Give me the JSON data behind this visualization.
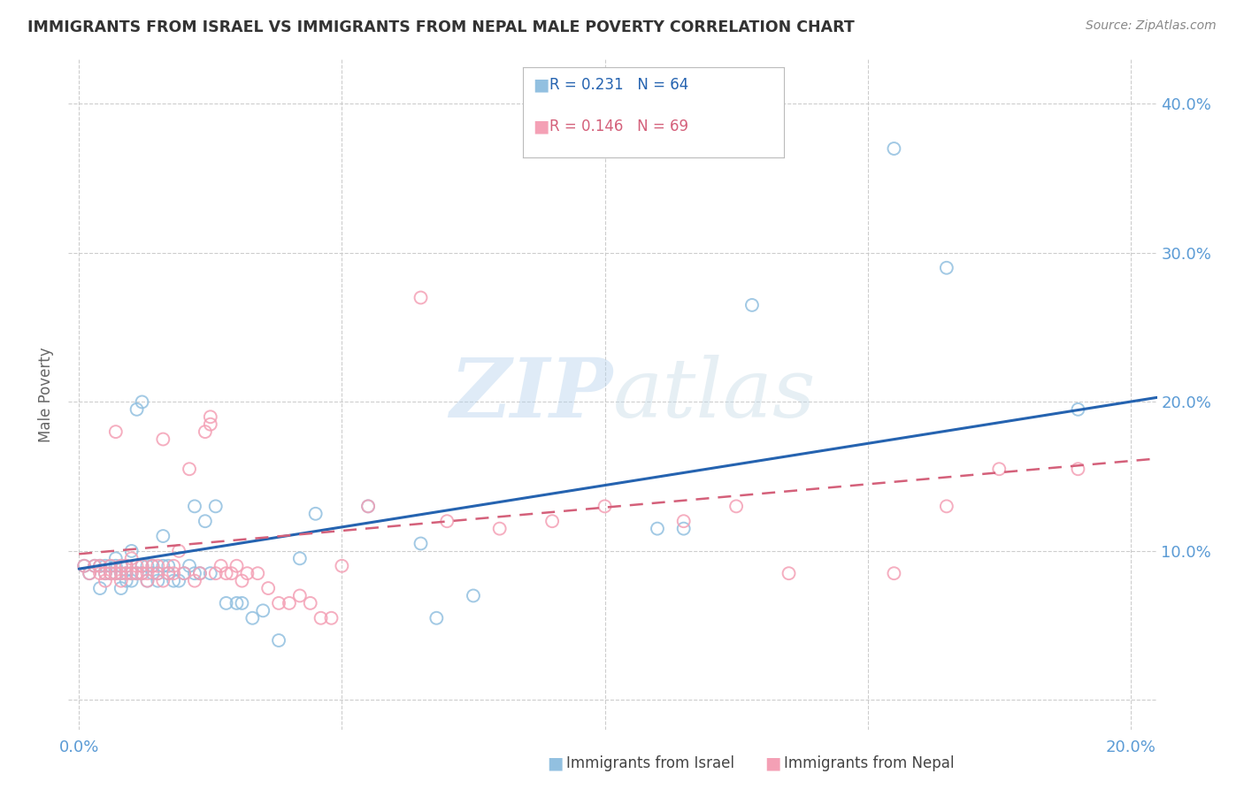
{
  "title": "IMMIGRANTS FROM ISRAEL VS IMMIGRANTS FROM NEPAL MALE POVERTY CORRELATION CHART",
  "source": "Source: ZipAtlas.com",
  "ylabel_label": "Male Poverty",
  "x_ticks": [
    0.0,
    0.05,
    0.1,
    0.15,
    0.2
  ],
  "y_ticks": [
    0.0,
    0.1,
    0.2,
    0.3,
    0.4
  ],
  "y_tick_labels": [
    "",
    "10.0%",
    "20.0%",
    "30.0%",
    "40.0%"
  ],
  "xlim": [
    -0.002,
    0.205
  ],
  "ylim": [
    -0.02,
    0.43
  ],
  "israel_color": "#92c0e0",
  "nepal_color": "#f4a0b5",
  "israel_line_color": "#2563b0",
  "nepal_line_color": "#d4607a",
  "israel_R": 0.231,
  "israel_N": 64,
  "nepal_R": 0.146,
  "nepal_N": 69,
  "israel_scatter_x": [
    0.001,
    0.002,
    0.003,
    0.004,
    0.004,
    0.005,
    0.005,
    0.006,
    0.006,
    0.007,
    0.007,
    0.007,
    0.008,
    0.008,
    0.008,
    0.009,
    0.009,
    0.009,
    0.01,
    0.01,
    0.01,
    0.011,
    0.011,
    0.012,
    0.012,
    0.012,
    0.013,
    0.013,
    0.014,
    0.014,
    0.015,
    0.015,
    0.016,
    0.016,
    0.017,
    0.017,
    0.018,
    0.019,
    0.02,
    0.021,
    0.022,
    0.022,
    0.023,
    0.024,
    0.025,
    0.026,
    0.028,
    0.03,
    0.031,
    0.033,
    0.035,
    0.038,
    0.042,
    0.045,
    0.055,
    0.065,
    0.068,
    0.075,
    0.11,
    0.115,
    0.128,
    0.155,
    0.165,
    0.19
  ],
  "israel_scatter_y": [
    0.09,
    0.085,
    0.09,
    0.075,
    0.09,
    0.09,
    0.085,
    0.085,
    0.09,
    0.085,
    0.09,
    0.095,
    0.075,
    0.085,
    0.09,
    0.08,
    0.085,
    0.09,
    0.08,
    0.085,
    0.1,
    0.085,
    0.195,
    0.09,
    0.085,
    0.2,
    0.08,
    0.09,
    0.085,
    0.09,
    0.08,
    0.085,
    0.09,
    0.11,
    0.085,
    0.09,
    0.08,
    0.08,
    0.085,
    0.09,
    0.085,
    0.13,
    0.085,
    0.12,
    0.085,
    0.13,
    0.065,
    0.065,
    0.065,
    0.055,
    0.06,
    0.04,
    0.095,
    0.125,
    0.13,
    0.105,
    0.055,
    0.07,
    0.115,
    0.115,
    0.265,
    0.37,
    0.29,
    0.195
  ],
  "nepal_scatter_x": [
    0.001,
    0.002,
    0.003,
    0.004,
    0.004,
    0.005,
    0.005,
    0.006,
    0.006,
    0.007,
    0.007,
    0.008,
    0.008,
    0.008,
    0.009,
    0.009,
    0.01,
    0.01,
    0.011,
    0.011,
    0.012,
    0.012,
    0.013,
    0.013,
    0.014,
    0.015,
    0.015,
    0.016,
    0.016,
    0.017,
    0.018,
    0.018,
    0.019,
    0.02,
    0.021,
    0.022,
    0.023,
    0.024,
    0.025,
    0.025,
    0.026,
    0.027,
    0.028,
    0.029,
    0.03,
    0.031,
    0.032,
    0.034,
    0.036,
    0.038,
    0.04,
    0.042,
    0.044,
    0.046,
    0.048,
    0.05,
    0.055,
    0.065,
    0.07,
    0.08,
    0.09,
    0.1,
    0.115,
    0.125,
    0.135,
    0.155,
    0.165,
    0.175,
    0.19
  ],
  "nepal_scatter_y": [
    0.09,
    0.085,
    0.09,
    0.085,
    0.09,
    0.08,
    0.085,
    0.085,
    0.09,
    0.085,
    0.18,
    0.08,
    0.085,
    0.09,
    0.085,
    0.09,
    0.085,
    0.095,
    0.085,
    0.09,
    0.085,
    0.09,
    0.08,
    0.085,
    0.09,
    0.085,
    0.09,
    0.08,
    0.175,
    0.085,
    0.085,
    0.09,
    0.1,
    0.085,
    0.155,
    0.08,
    0.085,
    0.18,
    0.185,
    0.19,
    0.085,
    0.09,
    0.085,
    0.085,
    0.09,
    0.08,
    0.085,
    0.085,
    0.075,
    0.065,
    0.065,
    0.07,
    0.065,
    0.055,
    0.055,
    0.09,
    0.13,
    0.27,
    0.12,
    0.115,
    0.12,
    0.13,
    0.12,
    0.13,
    0.085,
    0.085,
    0.13,
    0.155,
    0.155
  ],
  "israel_trend_x": [
    0.0,
    0.205
  ],
  "israel_trend_y": [
    0.088,
    0.203
  ],
  "nepal_trend_x": [
    0.0,
    0.205
  ],
  "nepal_trend_y": [
    0.098,
    0.162
  ],
  "watermark_zip": "ZIP",
  "watermark_atlas": "atlas",
  "background_color": "#ffffff",
  "grid_color": "#c8c8c8",
  "title_color": "#333333",
  "axis_label_color": "#666666",
  "tick_color": "#5b9bd5",
  "legend_box_color": "#e8e8e8"
}
